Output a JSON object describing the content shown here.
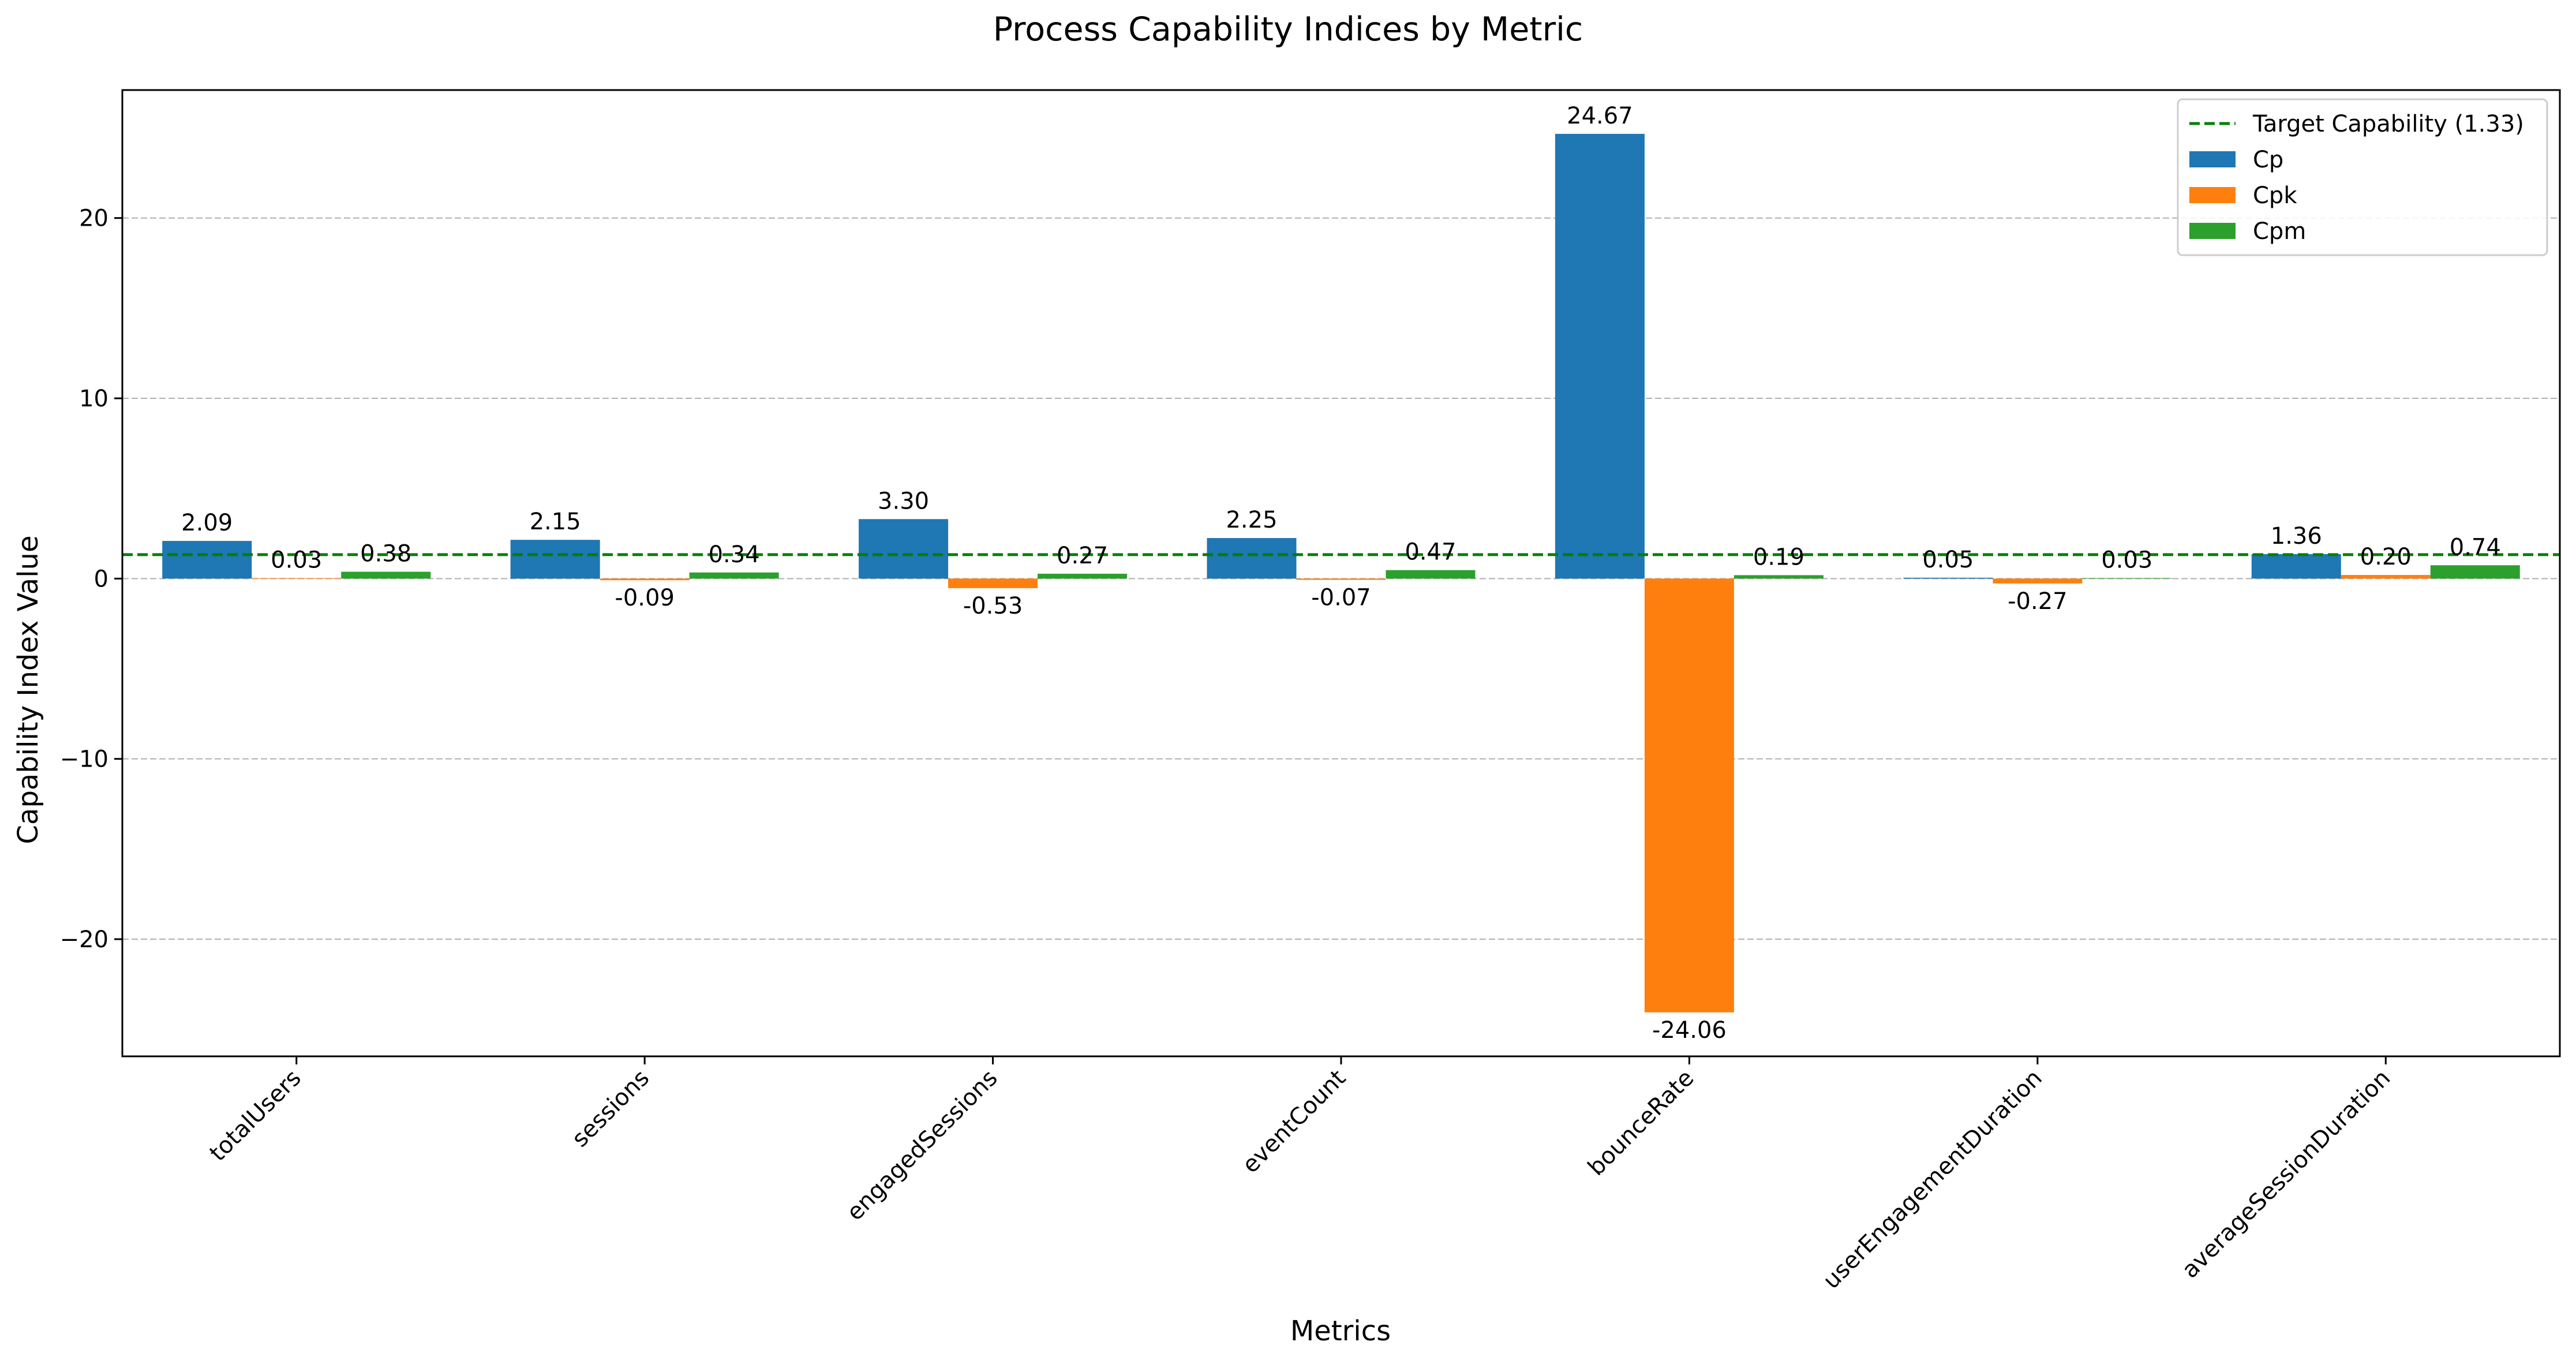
{
  "chart_data": {
    "type": "bar",
    "title": "Process Capability Indices by Metric",
    "xlabel": "Metrics",
    "ylabel": "Capability Index Value",
    "categories": [
      "totalUsers",
      "sessions",
      "engagedSessions",
      "eventCount",
      "bounceRate",
      "userEngagementDuration",
      "averageSessionDuration"
    ],
    "series": [
      {
        "name": "Cp",
        "color": "#1f77b4",
        "values": [
          2.09,
          2.15,
          3.3,
          2.25,
          24.67,
          0.05,
          1.36
        ],
        "labels": [
          "2.09",
          "2.15",
          "3.30",
          "2.25",
          "24.67",
          "0.05",
          "1.36"
        ]
      },
      {
        "name": "Cpk",
        "color": "#ff7f0e",
        "values": [
          0.03,
          -0.09,
          -0.53,
          -0.07,
          -24.06,
          -0.27,
          0.2
        ],
        "labels": [
          "0.03",
          "-0.09",
          "-0.53",
          "-0.07",
          "-24.06",
          "-0.27",
          "0.20"
        ]
      },
      {
        "name": "Cpm",
        "color": "#2ca02c",
        "values": [
          0.38,
          0.34,
          0.27,
          0.47,
          0.19,
          0.03,
          0.74
        ],
        "labels": [
          "0.38",
          "0.34",
          "0.27",
          "0.47",
          "0.19",
          "0.03",
          "0.74"
        ]
      }
    ],
    "reference_line": {
      "label": "Target Capability (1.33)",
      "value": 1.33,
      "color": "#008000",
      "style": "dashed"
    },
    "ylim": [
      -26.5,
      27.1
    ],
    "yticks": [
      -20,
      -10,
      0,
      10,
      20
    ],
    "ytick_labels": [
      "−20",
      "−10",
      "0",
      "10",
      "20"
    ],
    "grid": "y-dashed",
    "legend_position": "top-right"
  }
}
